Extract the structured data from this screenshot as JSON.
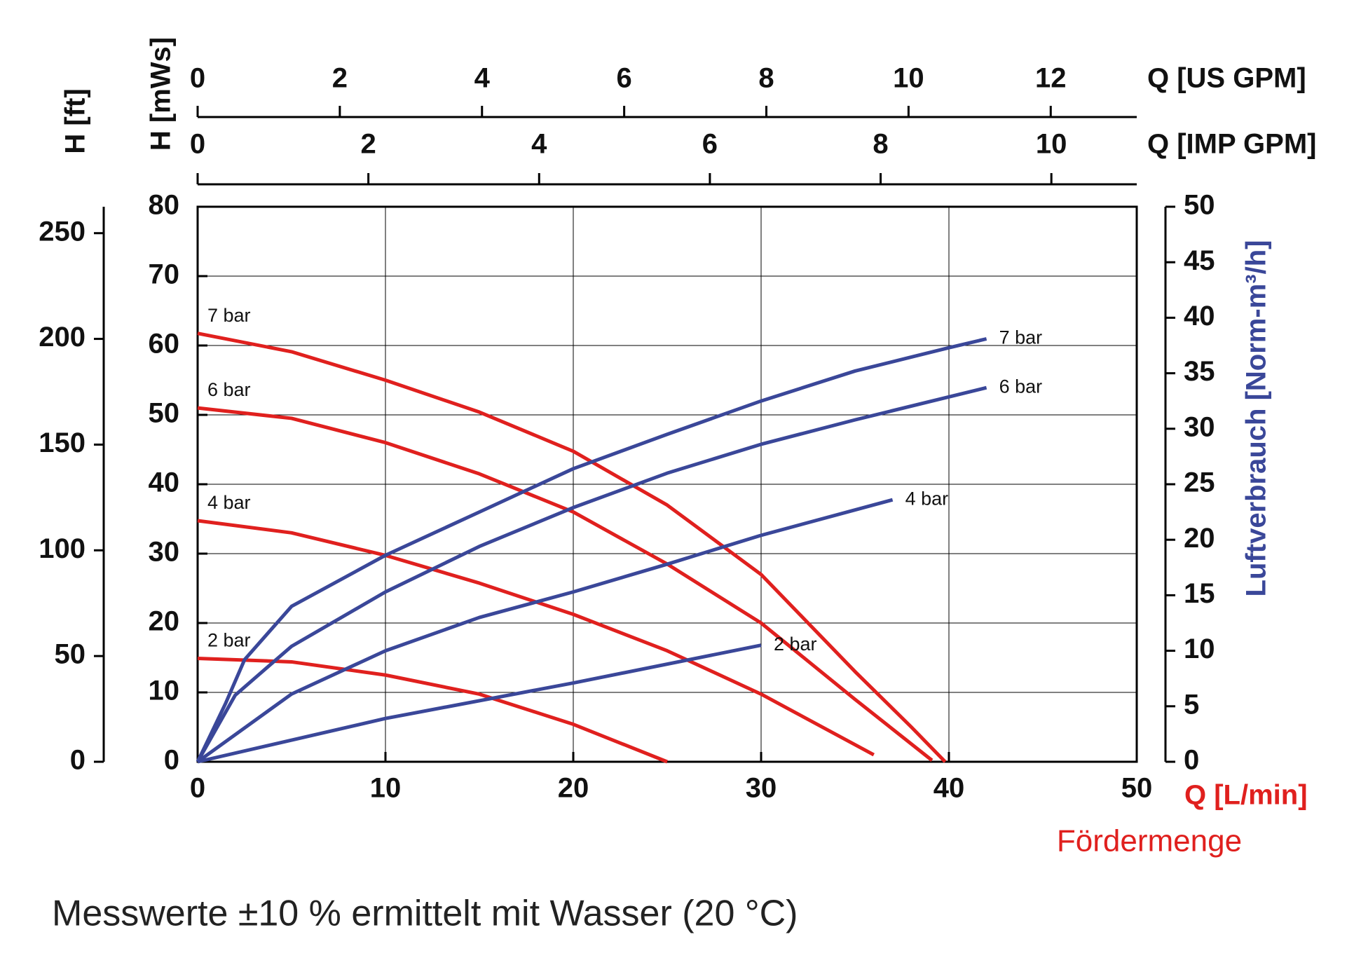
{
  "chart_data": {
    "type": "line",
    "xlabel": "Q [L/min]",
    "xsublabel": "Fördermenge",
    "xlim": [
      0,
      50
    ],
    "xticks": [
      0,
      10,
      20,
      30,
      40,
      50
    ],
    "ylabel": "H [mWs]",
    "ylim": [
      0,
      80
    ],
    "yticks": [
      0,
      10,
      20,
      30,
      40,
      50,
      60,
      70,
      80
    ],
    "y2label": "Luftverbrauch [Norm-m³/h]",
    "y2lim": [
      0,
      50
    ],
    "y2ticks": [
      0,
      5,
      10,
      15,
      20,
      25,
      30,
      35,
      40,
      45,
      50
    ],
    "grid": true,
    "top_axes": [
      {
        "label": "Q [US GPM]",
        "xlim": [
          0,
          13.21
        ],
        "xticks": [
          0,
          2,
          4,
          6,
          8,
          10,
          12
        ]
      },
      {
        "label": "Q [IMP GPM]",
        "xlim": [
          0,
          11
        ],
        "xticks": [
          0,
          2,
          4,
          6,
          8,
          10
        ]
      }
    ],
    "left_axis_ft": {
      "label": "H [ft]",
      "ylim": [
        0,
        262.5
      ],
      "yticks": [
        0,
        50,
        100,
        150,
        200,
        250
      ]
    },
    "series": [
      {
        "name": "7 bar",
        "color": "#e0201e",
        "axis": "y",
        "x": [
          0,
          5,
          10,
          15,
          20,
          25,
          30,
          35,
          38,
          39.8
        ],
        "values": [
          61.75,
          59.1,
          55,
          50.4,
          44.75,
          37,
          27,
          13,
          5,
          0
        ]
      },
      {
        "name": "6 bar",
        "color": "#e0201e",
        "axis": "y",
        "x": [
          0,
          5,
          10,
          15,
          20,
          25,
          30,
          35,
          39.1
        ],
        "values": [
          51,
          49.5,
          46,
          41.5,
          36,
          28.5,
          20,
          9,
          0.2
        ]
      },
      {
        "name": "4 bar",
        "color": "#e0201e",
        "axis": "y",
        "x": [
          0,
          5,
          10,
          15,
          20,
          25,
          30,
          36
        ],
        "values": [
          34.75,
          33,
          29.75,
          25.75,
          21.25,
          16,
          9.75,
          1
        ]
      },
      {
        "name": "2 bar",
        "color": "#e0201e",
        "axis": "y",
        "x": [
          0,
          5,
          10,
          15,
          20,
          25
        ],
        "values": [
          14.9,
          14.4,
          12.5,
          9.75,
          5.4,
          0
        ]
      },
      {
        "name": "7 bar",
        "color": "#3a4799",
        "axis": "y2",
        "x": [
          0,
          1.5,
          2.5,
          5,
          10,
          15,
          20,
          25,
          30,
          35,
          40,
          42
        ],
        "values": [
          0,
          5.3,
          9.2,
          14,
          18.6,
          22.5,
          26.4,
          29.5,
          32.5,
          35.2,
          37.3,
          38.1
        ]
      },
      {
        "name": "6 bar",
        "color": "#3a4799",
        "axis": "y2",
        "x": [
          0,
          2,
          5,
          10,
          15,
          20,
          25,
          30,
          35,
          42
        ],
        "values": [
          0,
          6,
          10.4,
          15.3,
          19.4,
          22.9,
          26,
          28.6,
          30.8,
          33.7
        ]
      },
      {
        "name": "4 bar",
        "color": "#3a4799",
        "axis": "y2",
        "x": [
          0,
          5,
          10,
          15,
          20,
          25,
          30,
          37
        ],
        "values": [
          0,
          6.1,
          10,
          13,
          15.3,
          17.8,
          20.4,
          23.6
        ]
      },
      {
        "name": "2 bar",
        "color": "#3a4799",
        "axis": "y2",
        "x": [
          0,
          10,
          20,
          30
        ],
        "values": [
          0,
          3.9,
          7.1,
          10.5
        ]
      }
    ],
    "note": "Messwerte ±10 % ermittelt mit Wasser (20 °C)"
  }
}
